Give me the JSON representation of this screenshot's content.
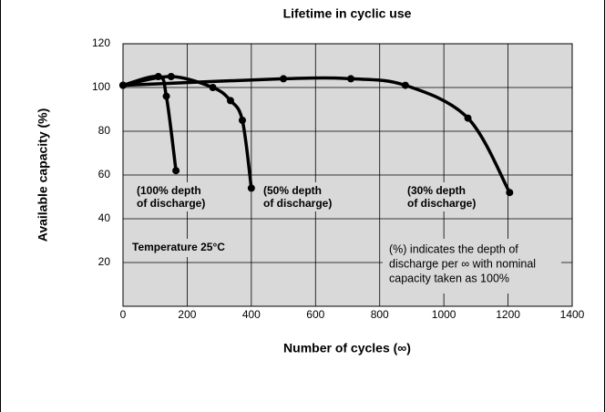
{
  "chart_data": {
    "type": "line",
    "title": "Lifetime in cyclic use",
    "xlabel": "Number of cycles (∞)",
    "ylabel": "Available capacity (%)",
    "xlim": [
      0,
      1400
    ],
    "xticks": [
      0,
      200,
      400,
      600,
      800,
      1000,
      1200,
      1400
    ],
    "ylim": [
      0,
      120
    ],
    "yticks": [
      20,
      40,
      60,
      80,
      100,
      120
    ],
    "grid": true,
    "series": [
      {
        "color": "#000000",
        "x": [
          0,
          110,
          135,
          165
        ],
        "values": [
          101,
          105,
          96,
          62
        ]
      },
      {
        "color": "#000000",
        "x": [
          0,
          150,
          280,
          335,
          372,
          400
        ],
        "values": [
          101,
          105,
          100,
          94,
          85,
          54
        ]
      },
      {
        "color": "#000000",
        "x": [
          0,
          500,
          710,
          880,
          1075,
          1205
        ],
        "values": [
          101,
          104,
          104,
          101,
          86,
          52
        ]
      }
    ],
    "annotations": [
      {
        "lines": [
          "(100% depth",
          "of discharge)"
        ]
      },
      {
        "lines": [
          "(50% depth",
          "of discharge)"
        ]
      },
      {
        "lines": [
          "(30% depth",
          "of discharge)"
        ]
      },
      {
        "lines": [
          "Temperature 25°C"
        ]
      },
      {
        "lines": [
          "(%) indicates the depth of",
          "discharge per ∞ with nominal",
          "capacity taken as 100%"
        ]
      }
    ]
  }
}
